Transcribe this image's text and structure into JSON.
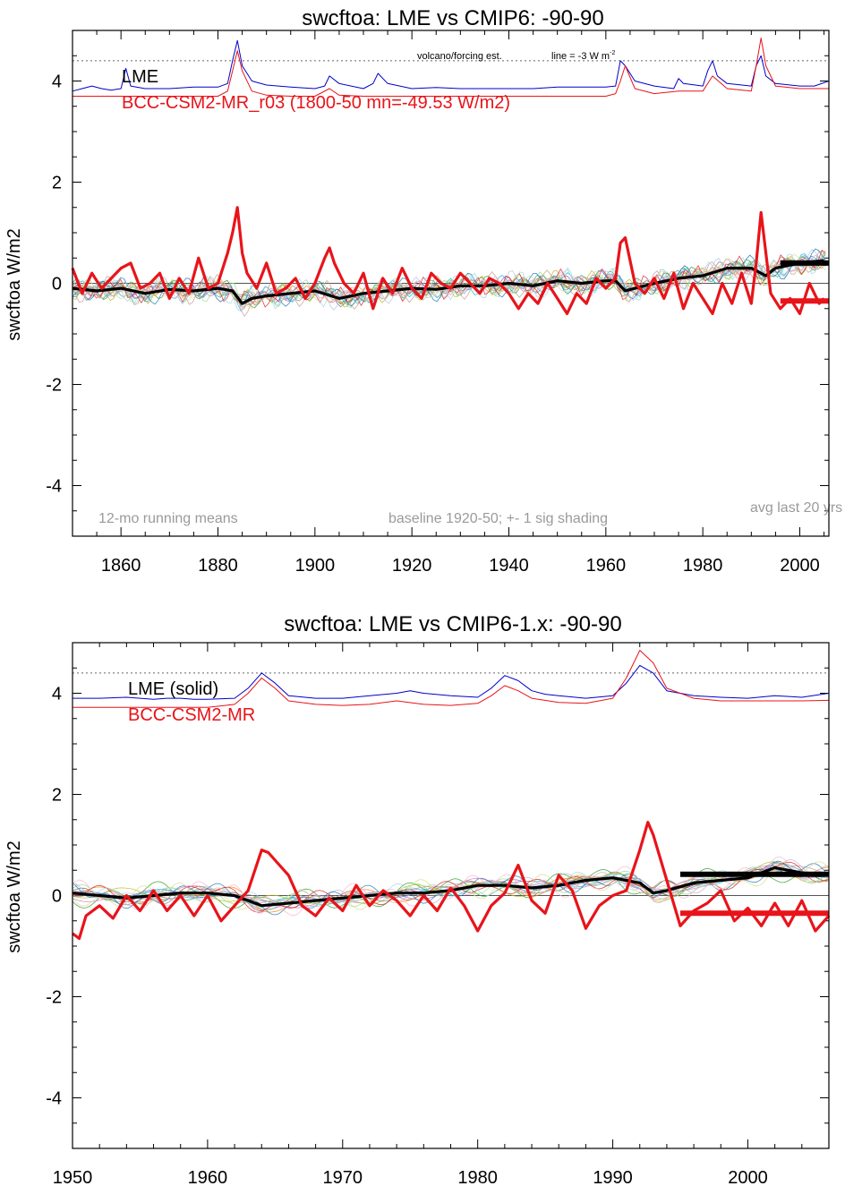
{
  "chart_data": [
    {
      "type": "line",
      "title": "swcftoa: LME vs CMIP6: -90-90",
      "ylabel": "swcftoa W/m2",
      "xlim": [
        1850,
        2006
      ],
      "ylim": [
        -5,
        5
      ],
      "x_ticks": [
        1860,
        1880,
        1900,
        1920,
        1940,
        1960,
        1980,
        2000
      ],
      "y_ticks": [
        -4,
        -2,
        0,
        2,
        4
      ],
      "reference_line_y": 4.4,
      "zero_line": true,
      "legend": [
        "LME",
        "BCC-CSM2-MR_r03 (1800-50 mn=-49.53 W/m2)"
      ],
      "annotations": {
        "volcano_label": "volcano/forcing est.",
        "scale_label": "line = -3 W m",
        "scale_sup": "-2",
        "running_means": "12-mo running means",
        "baseline": "baseline 1920-50; +- 1 sig shading",
        "avg_last": "avg last 20 yrs"
      },
      "series": [
        {
          "name": "LME",
          "color": "#000000",
          "x": [
            1850,
            1855,
            1860,
            1865,
            1870,
            1875,
            1880,
            1883,
            1885,
            1887,
            1890,
            1895,
            1900,
            1905,
            1910,
            1915,
            1920,
            1925,
            1930,
            1935,
            1940,
            1945,
            1950,
            1955,
            1960,
            1962,
            1964,
            1966,
            1970,
            1975,
            1980,
            1985,
            1990,
            1993,
            1995,
            2000,
            2005
          ],
          "y": [
            -0.1,
            -0.15,
            -0.1,
            -0.2,
            -0.12,
            -0.15,
            -0.1,
            -0.15,
            -0.4,
            -0.3,
            -0.25,
            -0.2,
            -0.15,
            -0.3,
            -0.2,
            -0.15,
            -0.1,
            -0.12,
            -0.05,
            -0.05,
            0.0,
            -0.05,
            0.05,
            0.0,
            0.05,
            0.05,
            -0.15,
            -0.1,
            0.0,
            0.1,
            0.15,
            0.3,
            0.3,
            0.15,
            0.3,
            0.4,
            0.45
          ]
        },
        {
          "name": "BCC-CSM2-MR_r03",
          "color": "#e8141a",
          "x": [
            1850,
            1852,
            1854,
            1856,
            1858,
            1860,
            1862,
            1864,
            1866,
            1868,
            1870,
            1872,
            1874,
            1876,
            1878,
            1880,
            1882,
            1883,
            1884,
            1885,
            1886,
            1888,
            1890,
            1892,
            1894,
            1896,
            1898,
            1900,
            1902,
            1903,
            1904,
            1906,
            1908,
            1910,
            1912,
            1914,
            1916,
            1918,
            1920,
            1922,
            1924,
            1926,
            1928,
            1930,
            1932,
            1934,
            1936,
            1938,
            1940,
            1942,
            1944,
            1946,
            1948,
            1950,
            1952,
            1954,
            1956,
            1958,
            1960,
            1962,
            1963,
            1964,
            1966,
            1968,
            1970,
            1972,
            1974,
            1976,
            1978,
            1980,
            1982,
            1984,
            1986,
            1988,
            1990,
            1991,
            1992,
            1993,
            1994,
            1996,
            1998,
            2000,
            2002,
            2004,
            2005
          ],
          "y": [
            0.3,
            -0.2,
            0.2,
            -0.1,
            0.1,
            0.3,
            0.4,
            -0.1,
            0.0,
            0.2,
            -0.3,
            0.1,
            -0.2,
            0.5,
            -0.1,
            0.0,
            0.6,
            1.0,
            1.5,
            0.6,
            0.2,
            -0.1,
            0.4,
            -0.2,
            -0.1,
            0.1,
            -0.3,
            0.0,
            0.5,
            0.7,
            0.4,
            0.0,
            -0.2,
            0.2,
            -0.5,
            0.1,
            -0.2,
            0.3,
            -0.1,
            -0.3,
            0.2,
            0.0,
            -0.1,
            0.2,
            0.0,
            -0.2,
            0.1,
            0.0,
            -0.2,
            -0.5,
            -0.2,
            -0.4,
            0.0,
            -0.3,
            -0.6,
            -0.2,
            -0.4,
            0.1,
            -0.1,
            0.1,
            0.8,
            0.9,
            0.0,
            -0.2,
            0.1,
            -0.3,
            0.2,
            -0.5,
            0.0,
            -0.3,
            -0.6,
            0.0,
            -0.4,
            0.2,
            -0.4,
            0.4,
            1.4,
            0.6,
            -0.2,
            -0.5,
            -0.3,
            -0.6,
            0.0,
            -0.4,
            -0.3
          ]
        },
        {
          "name": "LME avg last 20 yrs",
          "color": "#000000",
          "x": [
            1996,
            2006
          ],
          "y": [
            0.4,
            0.4
          ]
        },
        {
          "name": "BCC avg last 20 yrs",
          "color": "#e8141a",
          "x": [
            1996,
            2006
          ],
          "y": [
            -0.35,
            -0.35
          ]
        },
        {
          "name": "LME forcing",
          "color": "#0000cc",
          "x": [
            1850,
            1852,
            1854,
            1856,
            1858,
            1860,
            1861,
            1862,
            1865,
            1870,
            1875,
            1880,
            1882,
            1883,
            1884,
            1885,
            1887,
            1890,
            1895,
            1900,
            1902,
            1903,
            1905,
            1910,
            1912,
            1913,
            1915,
            1920,
            1925,
            1930,
            1935,
            1940,
            1945,
            1950,
            1955,
            1960,
            1962,
            1963,
            1964,
            1966,
            1970,
            1974,
            1975,
            1976,
            1980,
            1981,
            1982,
            1983,
            1985,
            1990,
            1991,
            1992,
            1993,
            1995,
            2000,
            2003,
            2006
          ],
          "y": [
            3.8,
            3.85,
            3.9,
            3.85,
            3.82,
            3.85,
            4.25,
            3.9,
            3.85,
            3.85,
            3.88,
            3.88,
            3.95,
            4.4,
            4.8,
            4.3,
            4.0,
            3.92,
            3.88,
            3.85,
            3.9,
            4.1,
            3.95,
            3.85,
            3.95,
            4.15,
            3.95,
            3.85,
            3.87,
            3.85,
            3.85,
            3.85,
            3.85,
            3.88,
            3.88,
            3.88,
            3.9,
            4.4,
            4.3,
            4.0,
            3.9,
            3.85,
            4.05,
            3.95,
            3.9,
            4.2,
            4.4,
            4.1,
            3.95,
            3.9,
            4.3,
            4.5,
            4.1,
            3.95,
            3.9,
            3.9,
            4.0
          ]
        },
        {
          "name": "BCC forcing",
          "color": "#e8141a",
          "x": [
            1850,
            1860,
            1870,
            1880,
            1882,
            1883,
            1884,
            1885,
            1887,
            1890,
            1895,
            1900,
            1903,
            1905,
            1910,
            1920,
            1930,
            1940,
            1950,
            1960,
            1962,
            1963,
            1964,
            1966,
            1970,
            1975,
            1980,
            1982,
            1985,
            1990,
            1991,
            1992,
            1993,
            1995,
            2000,
            2006
          ],
          "y": [
            3.7,
            3.7,
            3.7,
            3.7,
            3.8,
            4.2,
            4.6,
            4.2,
            3.8,
            3.72,
            3.7,
            3.7,
            3.85,
            3.72,
            3.7,
            3.7,
            3.7,
            3.7,
            3.7,
            3.7,
            3.75,
            4.0,
            4.3,
            3.85,
            3.75,
            3.8,
            3.8,
            4.1,
            3.85,
            3.8,
            4.3,
            4.85,
            4.3,
            3.9,
            3.85,
            3.85
          ]
        }
      ]
    },
    {
      "type": "line",
      "title": "swcftoa: LME vs CMIP6-1.x: -90-90",
      "ylabel": "swcftoa W/m2",
      "xlim": [
        1950,
        2006
      ],
      "ylim": [
        -5,
        5
      ],
      "x_ticks": [
        1950,
        1960,
        1970,
        1980,
        1990,
        2000
      ],
      "y_ticks": [
        -4,
        -2,
        0,
        2,
        4
      ],
      "reference_line_y": 4.4,
      "zero_line": true,
      "legend": [
        "LME (solid)",
        "BCC-CSM2-MR"
      ],
      "series": [
        {
          "name": "LME",
          "color": "#000000",
          "x": [
            1950,
            1952,
            1954,
            1956,
            1958,
            1960,
            1962,
            1964,
            1966,
            1968,
            1970,
            1972,
            1974,
            1976,
            1978,
            1980,
            1982,
            1984,
            1986,
            1988,
            1990,
            1992,
            1993,
            1994,
            1996,
            1998,
            2000,
            2002,
            2004,
            2006
          ],
          "y": [
            0.05,
            0.0,
            -0.05,
            0.0,
            0.05,
            0.05,
            0.0,
            -0.2,
            -0.15,
            -0.1,
            -0.05,
            0.0,
            0.05,
            0.05,
            0.1,
            0.2,
            0.2,
            0.15,
            0.2,
            0.3,
            0.35,
            0.25,
            0.05,
            0.1,
            0.25,
            0.3,
            0.35,
            0.55,
            0.45,
            0.4
          ]
        },
        {
          "name": "BCC-CSM2-MR",
          "color": "#e8141a",
          "x": [
            1950,
            1950.5,
            1951,
            1952,
            1953,
            1954,
            1955,
            1956,
            1957,
            1958,
            1959,
            1960,
            1961,
            1962,
            1963,
            1964,
            1964.5,
            1965,
            1966,
            1967,
            1968,
            1969,
            1970,
            1971,
            1972,
            1973,
            1974,
            1975,
            1976,
            1977,
            1978,
            1979,
            1980,
            1981,
            1982,
            1983,
            1984,
            1985,
            1986,
            1987,
            1988,
            1989,
            1990,
            1991,
            1992,
            1992.6,
            1993,
            1994,
            1995,
            1996,
            1997,
            1998,
            1999,
            2000,
            2001,
            2002,
            2003,
            2004,
            2005,
            2006
          ],
          "y": [
            -0.75,
            -0.85,
            -0.4,
            -0.2,
            -0.45,
            0.0,
            -0.3,
            0.1,
            -0.3,
            0.0,
            -0.4,
            0.0,
            -0.5,
            -0.2,
            0.1,
            0.9,
            0.85,
            0.7,
            0.4,
            -0.2,
            -0.4,
            -0.05,
            -0.3,
            0.2,
            -0.2,
            0.1,
            -0.1,
            -0.4,
            0.0,
            -0.3,
            0.15,
            -0.2,
            -0.7,
            -0.2,
            0.05,
            0.6,
            -0.1,
            -0.35,
            0.4,
            0.1,
            -0.65,
            -0.2,
            0.0,
            0.1,
            0.9,
            1.45,
            1.2,
            0.3,
            -0.6,
            -0.3,
            -0.15,
            0.1,
            -0.5,
            -0.25,
            -0.6,
            -0.15,
            -0.6,
            -0.1,
            -0.7,
            -0.4
          ]
        },
        {
          "name": "LME avg last 20 yrs",
          "color": "#000000",
          "x": [
            1995,
            2006
          ],
          "y": [
            0.42,
            0.42
          ]
        },
        {
          "name": "BCC avg last 20 yrs",
          "color": "#e8141a",
          "x": [
            1995,
            2006
          ],
          "y": [
            -0.35,
            -0.35
          ]
        },
        {
          "name": "LME forcing",
          "color": "#0000cc",
          "x": [
            1950,
            1952,
            1954,
            1955,
            1956,
            1957,
            1958,
            1959,
            1960,
            1962,
            1963,
            1964,
            1965,
            1966,
            1968,
            1970,
            1972,
            1974,
            1975,
            1976,
            1978,
            1980,
            1981,
            1982,
            1983,
            1984,
            1985,
            1986,
            1988,
            1990,
            1991,
            1992,
            1993,
            1994,
            1996,
            1998,
            2000,
            2002,
            2004,
            2006
          ],
          "y": [
            3.9,
            3.9,
            3.92,
            3.9,
            3.88,
            3.9,
            3.9,
            3.88,
            3.88,
            3.9,
            4.1,
            4.4,
            4.2,
            3.95,
            3.9,
            3.9,
            3.95,
            4.0,
            4.05,
            4.0,
            3.95,
            3.92,
            4.1,
            4.35,
            4.25,
            4.05,
            3.98,
            3.95,
            3.9,
            3.95,
            4.2,
            4.55,
            4.4,
            4.05,
            3.95,
            3.92,
            3.9,
            3.95,
            3.92,
            4.0
          ]
        },
        {
          "name": "BCC forcing",
          "color": "#e8141a",
          "x": [
            1950,
            1952,
            1954,
            1956,
            1958,
            1960,
            1962,
            1963,
            1964,
            1965,
            1966,
            1968,
            1970,
            1972,
            1974,
            1976,
            1978,
            1980,
            1981,
            1982,
            1983,
            1984,
            1986,
            1988,
            1990,
            1991,
            1992,
            1993,
            1994,
            1996,
            1998,
            2000,
            2002,
            2004,
            2006
          ],
          "y": [
            3.72,
            3.72,
            3.72,
            3.72,
            3.72,
            3.72,
            3.78,
            4.0,
            4.3,
            4.1,
            3.85,
            3.78,
            3.76,
            3.78,
            3.85,
            3.78,
            3.76,
            3.8,
            3.95,
            4.15,
            4.05,
            3.9,
            3.82,
            3.8,
            3.9,
            4.3,
            4.85,
            4.6,
            4.1,
            3.9,
            3.85,
            3.85,
            3.85,
            3.85,
            3.86
          ]
        }
      ]
    }
  ]
}
